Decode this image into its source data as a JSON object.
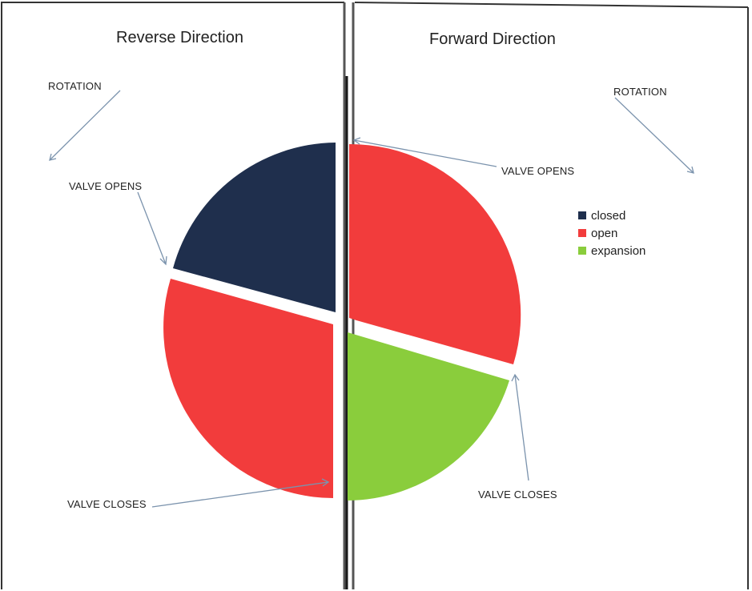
{
  "left_panel": {
    "title": "Reverse Direction",
    "rotation_label": "ROTATION",
    "valve_opens_label": "VALVE OPENS",
    "valve_closes_label": "VALVE CLOSES"
  },
  "right_panel": {
    "title": "Forward Direction",
    "rotation_label": "ROTATION",
    "valve_opens_label": "VALVE OPENS",
    "valve_closes_label": "VALVE CLOSES"
  },
  "legend": [
    {
      "label": "closed",
      "color": "#1f2f4d"
    },
    {
      "label": "open",
      "color": "#f23c3c"
    },
    {
      "label": "expansion",
      "color": "#8acd3c"
    }
  ],
  "colors": {
    "closed": "#1f2f4d",
    "open": "#f23c3c",
    "expansion": "#8acd3c",
    "arrow": "#7b93ad",
    "divider": "#2a2a2a"
  }
}
